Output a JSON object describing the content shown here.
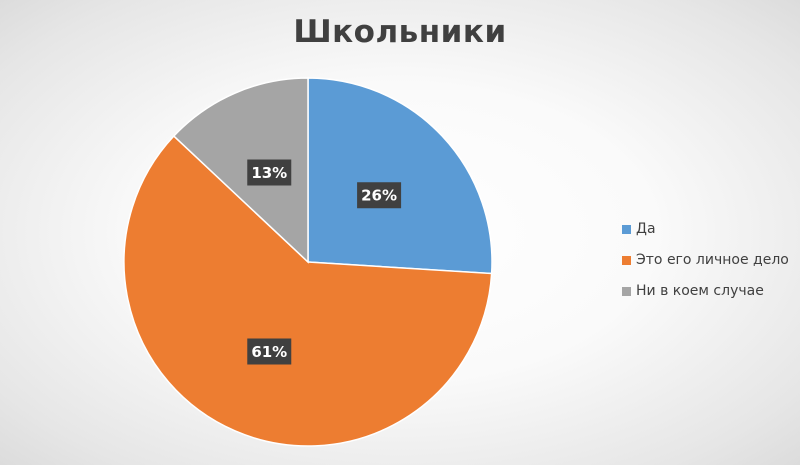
{
  "chart_data": {
    "type": "pie",
    "title": "Школьники",
    "categories": [
      "Да",
      "Это его личное дело",
      "Ни в коем случае"
    ],
    "values": [
      26,
      61,
      13
    ],
    "data_labels": [
      "26%",
      "61%",
      "13%"
    ],
    "colors": [
      "#5B9BD5",
      "#ED7D31",
      "#A5A5A5"
    ],
    "start_angle_deg": 0,
    "direction": "clockwise",
    "legend_position": "right"
  }
}
